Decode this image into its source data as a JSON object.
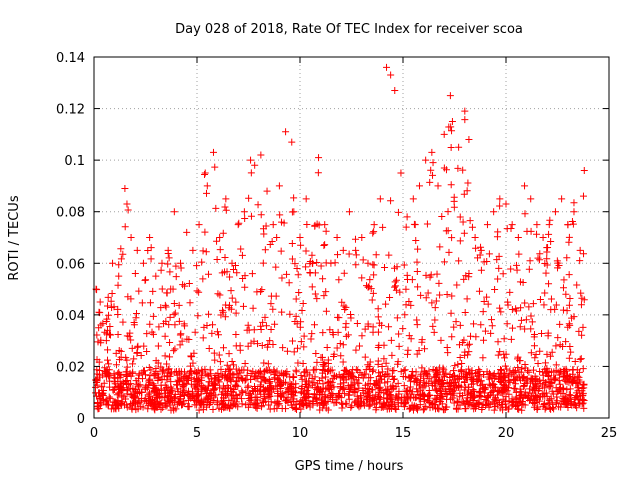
{
  "chart_data": {
    "type": "scatter",
    "title": "Day 028 of 2018, Rate Of TEC Index for receiver scoa",
    "xlabel": "GPS time / hours",
    "ylabel": "ROTI / TECUs",
    "xlim": [
      0,
      25
    ],
    "ylim": [
      0,
      0.14
    ],
    "x_ticks": [
      0,
      5,
      10,
      15,
      20,
      25
    ],
    "x_tick_labels": [
      "0",
      "5",
      "10",
      "15",
      "20",
      "25"
    ],
    "y_ticks": [
      0,
      0.02,
      0.04,
      0.06,
      0.08,
      0.1,
      0.12,
      0.14
    ],
    "y_tick_labels": [
      "0",
      "0.02",
      "0.04",
      "0.06",
      "0.08",
      "0.1",
      "0.12",
      "0.14"
    ],
    "grid": true,
    "marker": "+",
    "series": [
      {
        "name": "ROTI",
        "color": "#ff0000",
        "x": [
          0.1,
          0.3,
          0.6,
          0.9,
          1.2,
          1.5,
          1.6,
          1.8,
          2.1,
          2.4,
          2.7,
          3.0,
          3.3,
          3.6,
          3.9,
          4.2,
          4.5,
          4.8,
          5.1,
          5.4,
          5.5,
          5.8,
          6.1,
          6.4,
          6.7,
          7.0,
          7.3,
          7.6,
          7.8,
          8.1,
          8.4,
          8.7,
          9.0,
          9.3,
          9.6,
          9.7,
          10.0,
          10.3,
          10.6,
          10.9,
          11.2,
          11.5,
          11.8,
          12.1,
          12.4,
          12.7,
          13.0,
          13.3,
          13.6,
          13.9,
          14.2,
          14.4,
          14.6,
          14.9,
          15.2,
          15.5,
          15.8,
          16.1,
          16.4,
          16.7,
          17.0,
          17.3,
          17.4,
          17.7,
          18.0,
          18.2,
          18.5,
          18.8,
          19.1,
          19.4,
          19.7,
          20.0,
          20.3,
          20.6,
          20.9,
          21.2,
          21.5,
          21.8,
          22.1,
          22.4,
          22.7,
          23.0,
          23.3,
          23.6,
          23.8
        ],
        "y": [
          0.05,
          0.045,
          0.03,
          0.06,
          0.055,
          0.089,
          0.083,
          0.07,
          0.065,
          0.06,
          0.07,
          0.055,
          0.06,
          0.065,
          0.08,
          0.06,
          0.072,
          0.065,
          0.075,
          0.095,
          0.09,
          0.103,
          0.07,
          0.085,
          0.06,
          0.075,
          0.08,
          0.1,
          0.098,
          0.102,
          0.088,
          0.075,
          0.09,
          0.111,
          0.107,
          0.08,
          0.07,
          0.085,
          0.06,
          0.101,
          0.075,
          0.06,
          0.07,
          0.065,
          0.08,
          0.065,
          0.07,
          0.06,
          0.075,
          0.085,
          0.136,
          0.133,
          0.127,
          0.095,
          0.078,
          0.085,
          0.09,
          0.1,
          0.103,
          0.09,
          0.11,
          0.125,
          0.115,
          0.105,
          0.119,
          0.108,
          0.07,
          0.065,
          0.075,
          0.08,
          0.085,
          0.083,
          0.075,
          0.07,
          0.09,
          0.085,
          0.075,
          0.07,
          0.075,
          0.08,
          0.085,
          0.075,
          0.08,
          0.065,
          0.096
        ]
      }
    ]
  }
}
